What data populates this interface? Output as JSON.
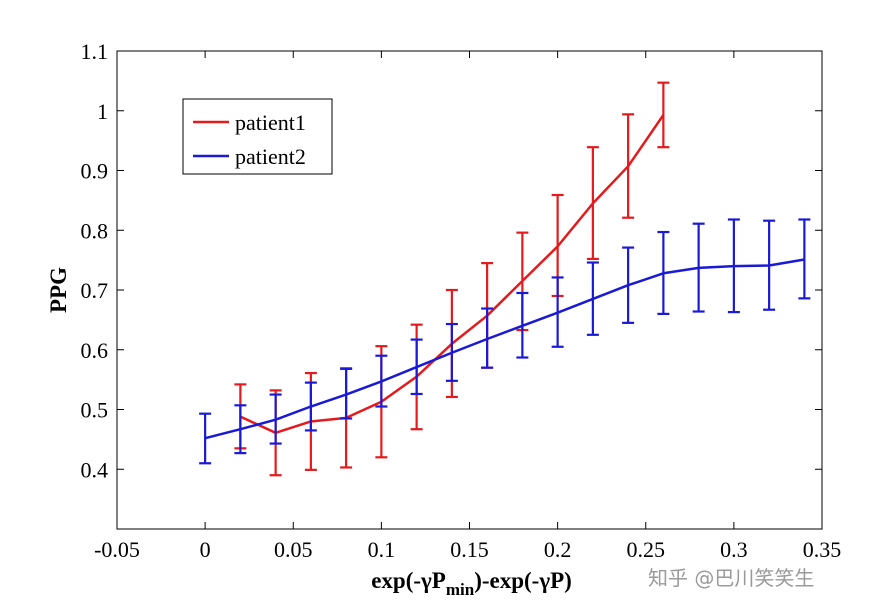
{
  "colors": {
    "patient1": "#e41a1c",
    "patient2": "#1a1ad6",
    "axis": "#000000",
    "watermark": "#9a9a9a"
  },
  "watermark": {
    "text": "知乎 @巴川笑笑生"
  },
  "chart_data": {
    "type": "line",
    "title": "",
    "xlabel": {
      "prefix": "exp(-γP",
      "subscript": "min",
      "suffix": ")-exp(-γP)"
    },
    "ylabel": "PPG",
    "xlim": [
      -0.05,
      0.35
    ],
    "ylim": [
      0.3,
      1.1
    ],
    "xticks": [
      -0.05,
      0,
      0.05,
      0.1,
      0.15,
      0.2,
      0.25,
      0.3,
      0.35
    ],
    "xtick_labels": [
      "-0.05",
      "0",
      "0.05",
      "0.1",
      "0.15",
      "0.2",
      "0.25",
      "0.3",
      "0.35"
    ],
    "yticks": [
      0.4,
      0.5,
      0.6,
      0.7,
      0.8,
      0.9,
      1.0,
      1.1
    ],
    "ytick_labels": [
      "0.4",
      "0.5",
      "0.6",
      "0.7",
      "0.8",
      "0.9",
      "1",
      "1.1"
    ],
    "grid": false,
    "legend_position": "top-left",
    "series": [
      {
        "name": "patient1",
        "color_key": "patient1",
        "x": [
          0.02,
          0.04,
          0.06,
          0.08,
          0.1,
          0.12,
          0.14,
          0.16,
          0.18,
          0.2,
          0.22,
          0.24,
          0.26
        ],
        "y": [
          0.488,
          0.461,
          0.48,
          0.486,
          0.513,
          0.555,
          0.61,
          0.657,
          0.715,
          0.773,
          0.845,
          0.907,
          0.993
        ],
        "err_low": [
          0.435,
          0.39,
          0.399,
          0.403,
          0.42,
          0.467,
          0.521,
          0.57,
          0.633,
          0.69,
          0.752,
          0.821,
          0.939
        ],
        "err_high": [
          0.542,
          0.532,
          0.561,
          0.569,
          0.606,
          0.642,
          0.7,
          0.745,
          0.796,
          0.859,
          0.939,
          0.994,
          1.047
        ]
      },
      {
        "name": "patient2",
        "color_key": "patient2",
        "x": [
          0.0,
          0.02,
          0.04,
          0.06,
          0.08,
          0.1,
          0.12,
          0.14,
          0.16,
          0.18,
          0.2,
          0.22,
          0.24,
          0.26,
          0.28,
          0.3,
          0.32,
          0.34
        ],
        "y": [
          0.452,
          0.467,
          0.483,
          0.505,
          0.525,
          0.547,
          0.571,
          0.595,
          0.618,
          0.64,
          0.662,
          0.685,
          0.708,
          0.728,
          0.737,
          0.74,
          0.741,
          0.751
        ],
        "err_low": [
          0.41,
          0.427,
          0.443,
          0.465,
          0.485,
          0.505,
          0.526,
          0.548,
          0.57,
          0.587,
          0.605,
          0.625,
          0.645,
          0.66,
          0.664,
          0.663,
          0.667,
          0.686
        ],
        "err_high": [
          0.493,
          0.507,
          0.525,
          0.545,
          0.568,
          0.59,
          0.617,
          0.643,
          0.669,
          0.695,
          0.721,
          0.746,
          0.771,
          0.797,
          0.811,
          0.818,
          0.816,
          0.818
        ]
      }
    ]
  }
}
